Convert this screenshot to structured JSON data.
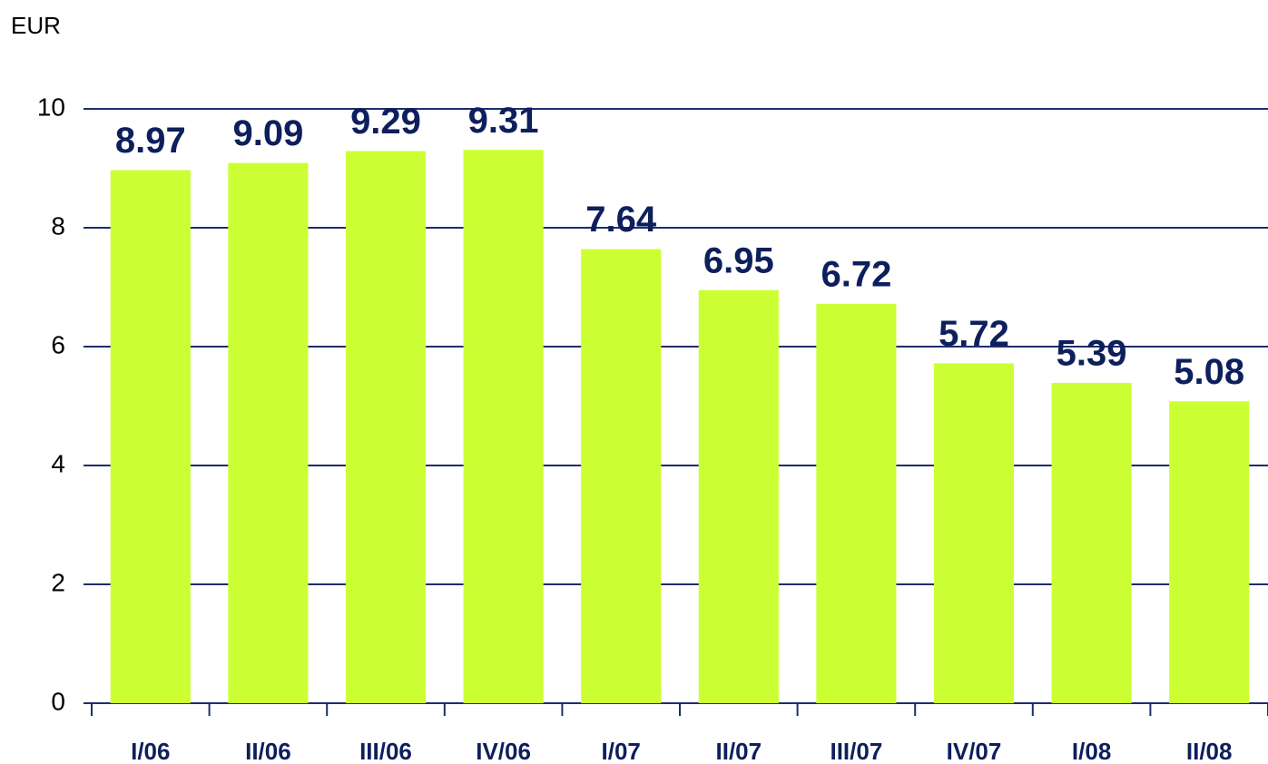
{
  "chart_data": {
    "type": "bar",
    "ylabel": "EUR",
    "categories": [
      "I/06",
      "II/06",
      "III/06",
      "IV/06",
      "I/07",
      "II/07",
      "III/07",
      "IV/07",
      "I/08",
      "II/08"
    ],
    "values": [
      8.97,
      9.09,
      9.29,
      9.31,
      7.64,
      6.95,
      6.72,
      5.72,
      5.39,
      5.08
    ],
    "color": "#ccff33",
    "ylim": [
      0,
      10
    ],
    "yticks": [
      0,
      2,
      4,
      6,
      8,
      10
    ],
    "grid": true
  }
}
